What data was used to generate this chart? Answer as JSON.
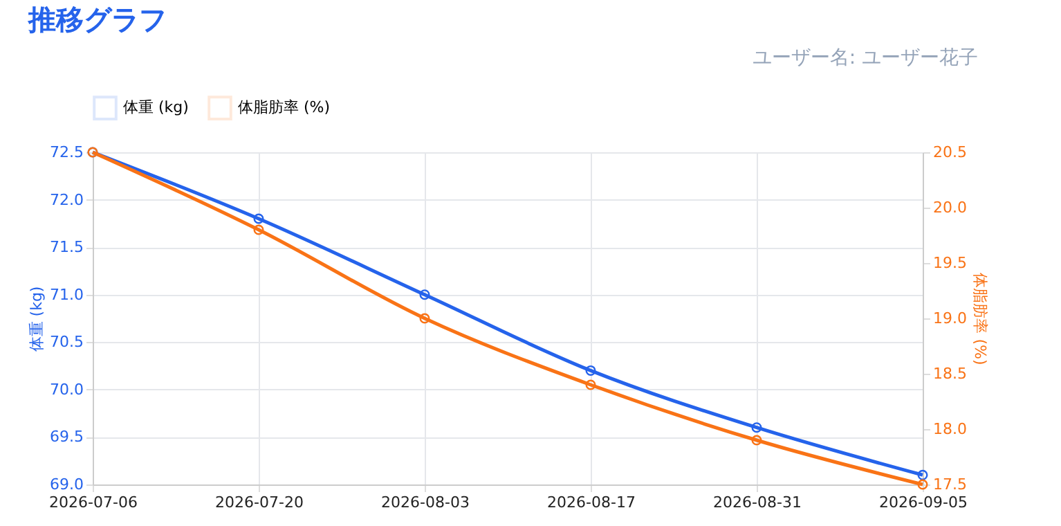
{
  "chart_data": {
    "type": "line",
    "title": "推移グラフ",
    "annotations": [
      "ユーザー名: ユーザー花子"
    ],
    "ylabel": "体重 (kg)",
    "y2label": "体脂肪率 (%)",
    "categories": [
      "2026-07-06",
      "2026-07-20",
      "2026-08-03",
      "2026-08-17",
      "2026-08-31",
      "2026-09-05"
    ],
    "series": [
      {
        "name": "体重 (kg)",
        "color": "#2563eb",
        "values": [
          72.5,
          71.8,
          71.0,
          70.2,
          69.6,
          69.1
        ]
      },
      {
        "name": "体脂肪率 (%)",
        "color": "#f97316",
        "axis": "y2",
        "values": [
          20.5,
          19.8,
          19.0,
          18.4,
          17.9,
          17.5
        ]
      }
    ],
    "ylim": [
      69.0,
      72.5
    ],
    "yticks": [
      {
        "value": 69,
        "label": "69.0"
      },
      69.5,
      {
        "value": 70,
        "label": "70.0"
      },
      70.5,
      {
        "value": 71,
        "label": "71.0"
      },
      71.5,
      {
        "value": 72,
        "label": "72.0"
      },
      72.5
    ],
    "y2lim": [
      17.5,
      20.5
    ],
    "y2ticks": [
      17.5,
      {
        "value": 18,
        "label": "18.0"
      },
      18.5,
      {
        "value": 19,
        "label": "19.0"
      },
      19.5,
      {
        "value": 20,
        "label": "20.0"
      },
      20.5
    ],
    "grid": true,
    "legend": "top",
    "marker": "circle",
    "line_style": "solid"
  }
}
